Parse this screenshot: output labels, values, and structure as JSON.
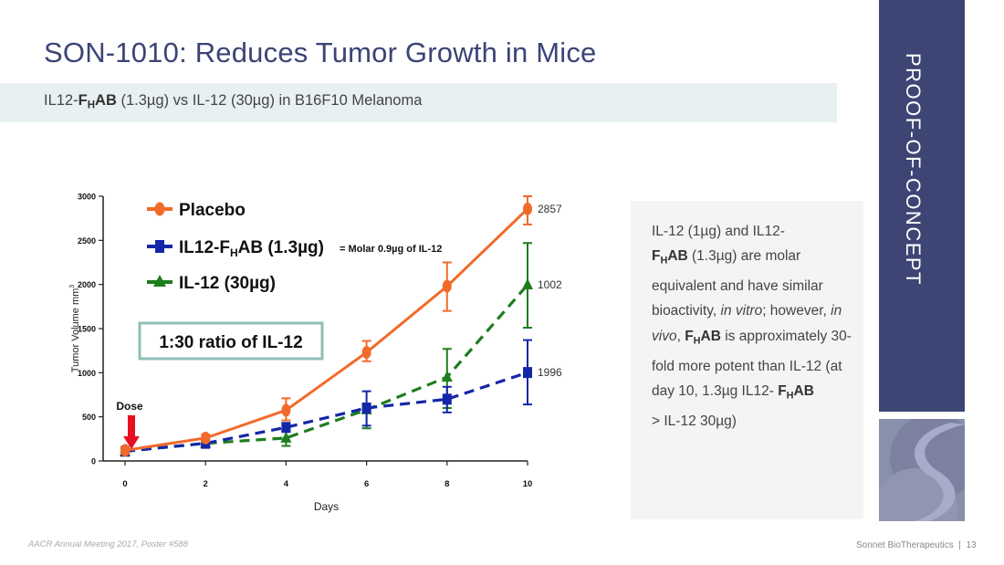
{
  "slide": {
    "title_strong": "SON-1010:",
    "title_rest": " Reduces Tumor Growth in Mice",
    "subtitle": {
      "prefix": "IL12-",
      "bold_f": "F",
      "bold_sub": "H",
      "bold_ab": "AB",
      "rest": " (1.3µg) vs IL-12 (30µg) in B16F10 Melanoma"
    },
    "section_label": "PROOF-OF-CONCEPT",
    "side_text": {
      "p1": "IL-12 (1µg) and IL12-",
      "p2_f": "F",
      "p2_sub": "H",
      "p2_ab": "AB",
      "p3": " (1.3µg) are molar equivalent and have similar bioactivity, ",
      "p4_i": "in vitro",
      "p5": "; however, ",
      "p6_i": "in vivo",
      "p7": ", ",
      "p8_f": "F",
      "p8_sub": "H",
      "p8_ab": "AB",
      "p9": "  is approximately 30-fold more potent than IL-12  (at day 10, 1.3µg IL12- ",
      "p10_f": "F",
      "p10_sub": "H",
      "p10_ab": "AB",
      "p11": " > IL-12 30µg)"
    },
    "footer_left": "AACR Annual Meeting 2017, Poster #588",
    "footer_company": "Sonnet BioTherapeutics",
    "footer_sep": "|",
    "page_number": "13"
  },
  "chart_data": {
    "type": "line",
    "title": "",
    "xlabel": "Days",
    "ylabel": "Tumor Volume mm",
    "ylabel_sup": "3",
    "x": [
      0,
      2,
      4,
      6,
      8,
      10
    ],
    "xticks": [
      "0",
      "2",
      "4",
      "6",
      "8",
      "10"
    ],
    "yticks": [
      "0",
      "500",
      "1000",
      "1500",
      "2000",
      "2500",
      "3000"
    ],
    "xlim": [
      0,
      10
    ],
    "ylim": [
      0,
      3000
    ],
    "grid": false,
    "legend_position": "top-left",
    "series": [
      {
        "name": "Placebo",
        "legend_label": "Placebo",
        "color": "#f26a2a",
        "style": "solid",
        "marker": "circle",
        "values": [
          120,
          260,
          575,
          1230,
          1980,
          2857
        ],
        "err_low": [
          80,
          220,
          460,
          1130,
          1700,
          2680
        ],
        "err_high": [
          160,
          300,
          710,
          1360,
          2250,
          3000
        ]
      },
      {
        "name": "IL12-FHAB (1.3µg)",
        "legend_label": "IL12-F",
        "legend_sub": "H",
        "legend_tail": "AB (1.3µg)",
        "legend_note": "= Molar 0.9µg of IL-12",
        "color": "#1426a8",
        "style": "dashed",
        "marker": "square",
        "values": [
          110,
          200,
          380,
          600,
          700,
          1002
        ],
        "err_low": [
          100,
          180,
          340,
          400,
          550,
          640
        ],
        "err_high": [
          120,
          220,
          420,
          790,
          840,
          1370
        ]
      },
      {
        "name": "IL-12 (30µg)",
        "legend_label": "IL-12 (30µg)",
        "color": "#1e7d1e",
        "style": "dashed",
        "marker": "triangle",
        "values": [
          110,
          200,
          260,
          580,
          950,
          1996
        ],
        "err_low": [
          100,
          180,
          170,
          370,
          600,
          1510
        ],
        "err_high": [
          120,
          220,
          360,
          640,
          1270,
          2470
        ]
      }
    ],
    "end_labels": [
      "2857",
      "1996",
      "1002"
    ],
    "annotations": {
      "ratio_box": "1:30 ratio of IL-12",
      "dose_label": "Dose",
      "dose_day": 0,
      "ratio_box_color": "#8fbfb6",
      "dose_arrow_color": "#e8101e"
    }
  }
}
